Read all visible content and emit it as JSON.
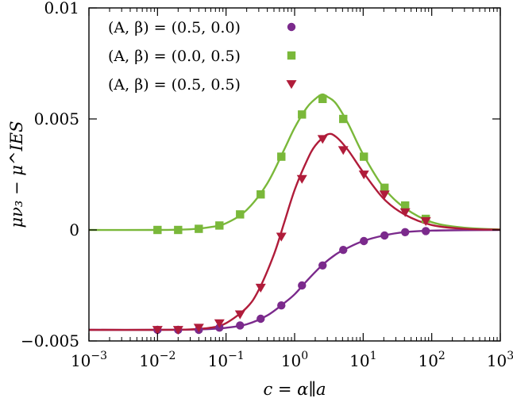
{
  "chart_data": {
    "type": "scatter",
    "title": "",
    "xlabel": "c = α∥a",
    "ylabel": "μν₃ − μ^IES",
    "xscale": "log",
    "xlim": [
      0.001,
      1000
    ],
    "ylim": [
      -0.005,
      0.01
    ],
    "grid": false,
    "legend_position": "top-left",
    "x_ticks": [
      {
        "value": 0.001,
        "base": "10",
        "exp": "−3"
      },
      {
        "value": 0.01,
        "base": "10",
        "exp": "−2"
      },
      {
        "value": 0.1,
        "base": "10",
        "exp": "−1"
      },
      {
        "value": 1,
        "base": "10",
        "exp": "0"
      },
      {
        "value": 10,
        "base": "10",
        "exp": "1"
      },
      {
        "value": 100,
        "base": "10",
        "exp": "2"
      },
      {
        "value": 1000,
        "base": "10",
        "exp": "3"
      }
    ],
    "y_ticks": [
      {
        "value": -0.005,
        "label": "−0.005"
      },
      {
        "value": 0,
        "label": "0"
      },
      {
        "value": 0.005,
        "label": "0.005"
      },
      {
        "value": 0.01,
        "label": "0.01"
      }
    ],
    "series": [
      {
        "name": "(A, β) = (0.5, 0.0)",
        "marker": "circle",
        "color": "#7b2a8c",
        "x": [
          0.01,
          0.02,
          0.04,
          0.08,
          0.16,
          0.32,
          0.64,
          1.28,
          2.56,
          5.12,
          10.24,
          20.48,
          40.96,
          81.92
        ],
        "y": [
          -0.0045,
          -0.0045,
          -0.0045,
          -0.0044,
          -0.0043,
          -0.004,
          -0.0034,
          -0.0025,
          -0.0016,
          -0.0009,
          -0.0005,
          -0.00025,
          -0.0001,
          -5e-05
        ],
        "curve_x": [
          0.001,
          0.01,
          0.03,
          0.06,
          0.1,
          0.2,
          0.4,
          0.7,
          1,
          1.5,
          2.5,
          4,
          6,
          10,
          20,
          40,
          100,
          300,
          1000
        ],
        "curve_y": [
          -0.0045,
          -0.0045,
          -0.00449,
          -0.00446,
          -0.00441,
          -0.00425,
          -0.00385,
          -0.0033,
          -0.0029,
          -0.0023,
          -0.0016,
          -0.0011,
          -0.0008,
          -0.0005,
          -0.00025,
          -0.0001,
          -3e-05,
          -1e-05,
          0
        ]
      },
      {
        "name": "(A, β) = (0.0, 0.5)",
        "marker": "square",
        "color": "#7ab83a",
        "x": [
          0.01,
          0.02,
          0.04,
          0.08,
          0.16,
          0.32,
          0.64,
          1.28,
          2.56,
          5.12,
          10.24,
          20.48,
          40.96,
          81.92
        ],
        "y": [
          0.0,
          0.0,
          5e-05,
          0.0002,
          0.0007,
          0.0016,
          0.0033,
          0.0052,
          0.0059,
          0.005,
          0.0033,
          0.0019,
          0.0011,
          0.0005
        ],
        "curve_x": [
          0.001,
          0.01,
          0.03,
          0.06,
          0.1,
          0.2,
          0.4,
          0.7,
          1,
          1.5,
          2,
          2.5,
          3,
          4,
          6,
          10,
          20,
          40,
          100,
          300,
          1000
        ],
        "curve_y": [
          0,
          0,
          3e-05,
          0.00013,
          0.0003,
          0.0009,
          0.0021,
          0.0036,
          0.0046,
          0.0055,
          0.0059,
          0.0061,
          0.006,
          0.0057,
          0.0048,
          0.0034,
          0.0019,
          0.001,
          0.00035,
          0.0001,
          2e-05
        ]
      },
      {
        "name": "(A, β) = (0.5, 0.5)",
        "marker": "triangle-down",
        "color": "#b01c3a",
        "x": [
          0.01,
          0.02,
          0.04,
          0.08,
          0.16,
          0.32,
          0.64,
          1.28,
          2.56,
          5.12,
          10.24,
          20.48,
          40.96,
          81.92
        ],
        "y": [
          -0.0045,
          -0.0045,
          -0.0044,
          -0.0042,
          -0.0038,
          -0.0026,
          -0.0003,
          0.0023,
          0.0041,
          0.0036,
          0.0025,
          0.0016,
          0.0008,
          0.0004
        ],
        "curve_x": [
          0.001,
          0.01,
          0.03,
          0.06,
          0.1,
          0.2,
          0.3,
          0.5,
          0.7,
          1,
          1.5,
          2,
          3,
          4,
          6,
          10,
          20,
          40,
          100,
          300,
          1000
        ],
        "curve_y": [
          -0.0045,
          -0.0045,
          -0.00448,
          -0.0044,
          -0.0042,
          -0.0035,
          -0.0027,
          -0.0011,
          0.0003,
          0.0018,
          0.0031,
          0.0038,
          0.0043,
          0.0042,
          0.0036,
          0.0026,
          0.0014,
          0.0007,
          0.00022,
          5e-05,
          1e-05
        ]
      }
    ]
  }
}
